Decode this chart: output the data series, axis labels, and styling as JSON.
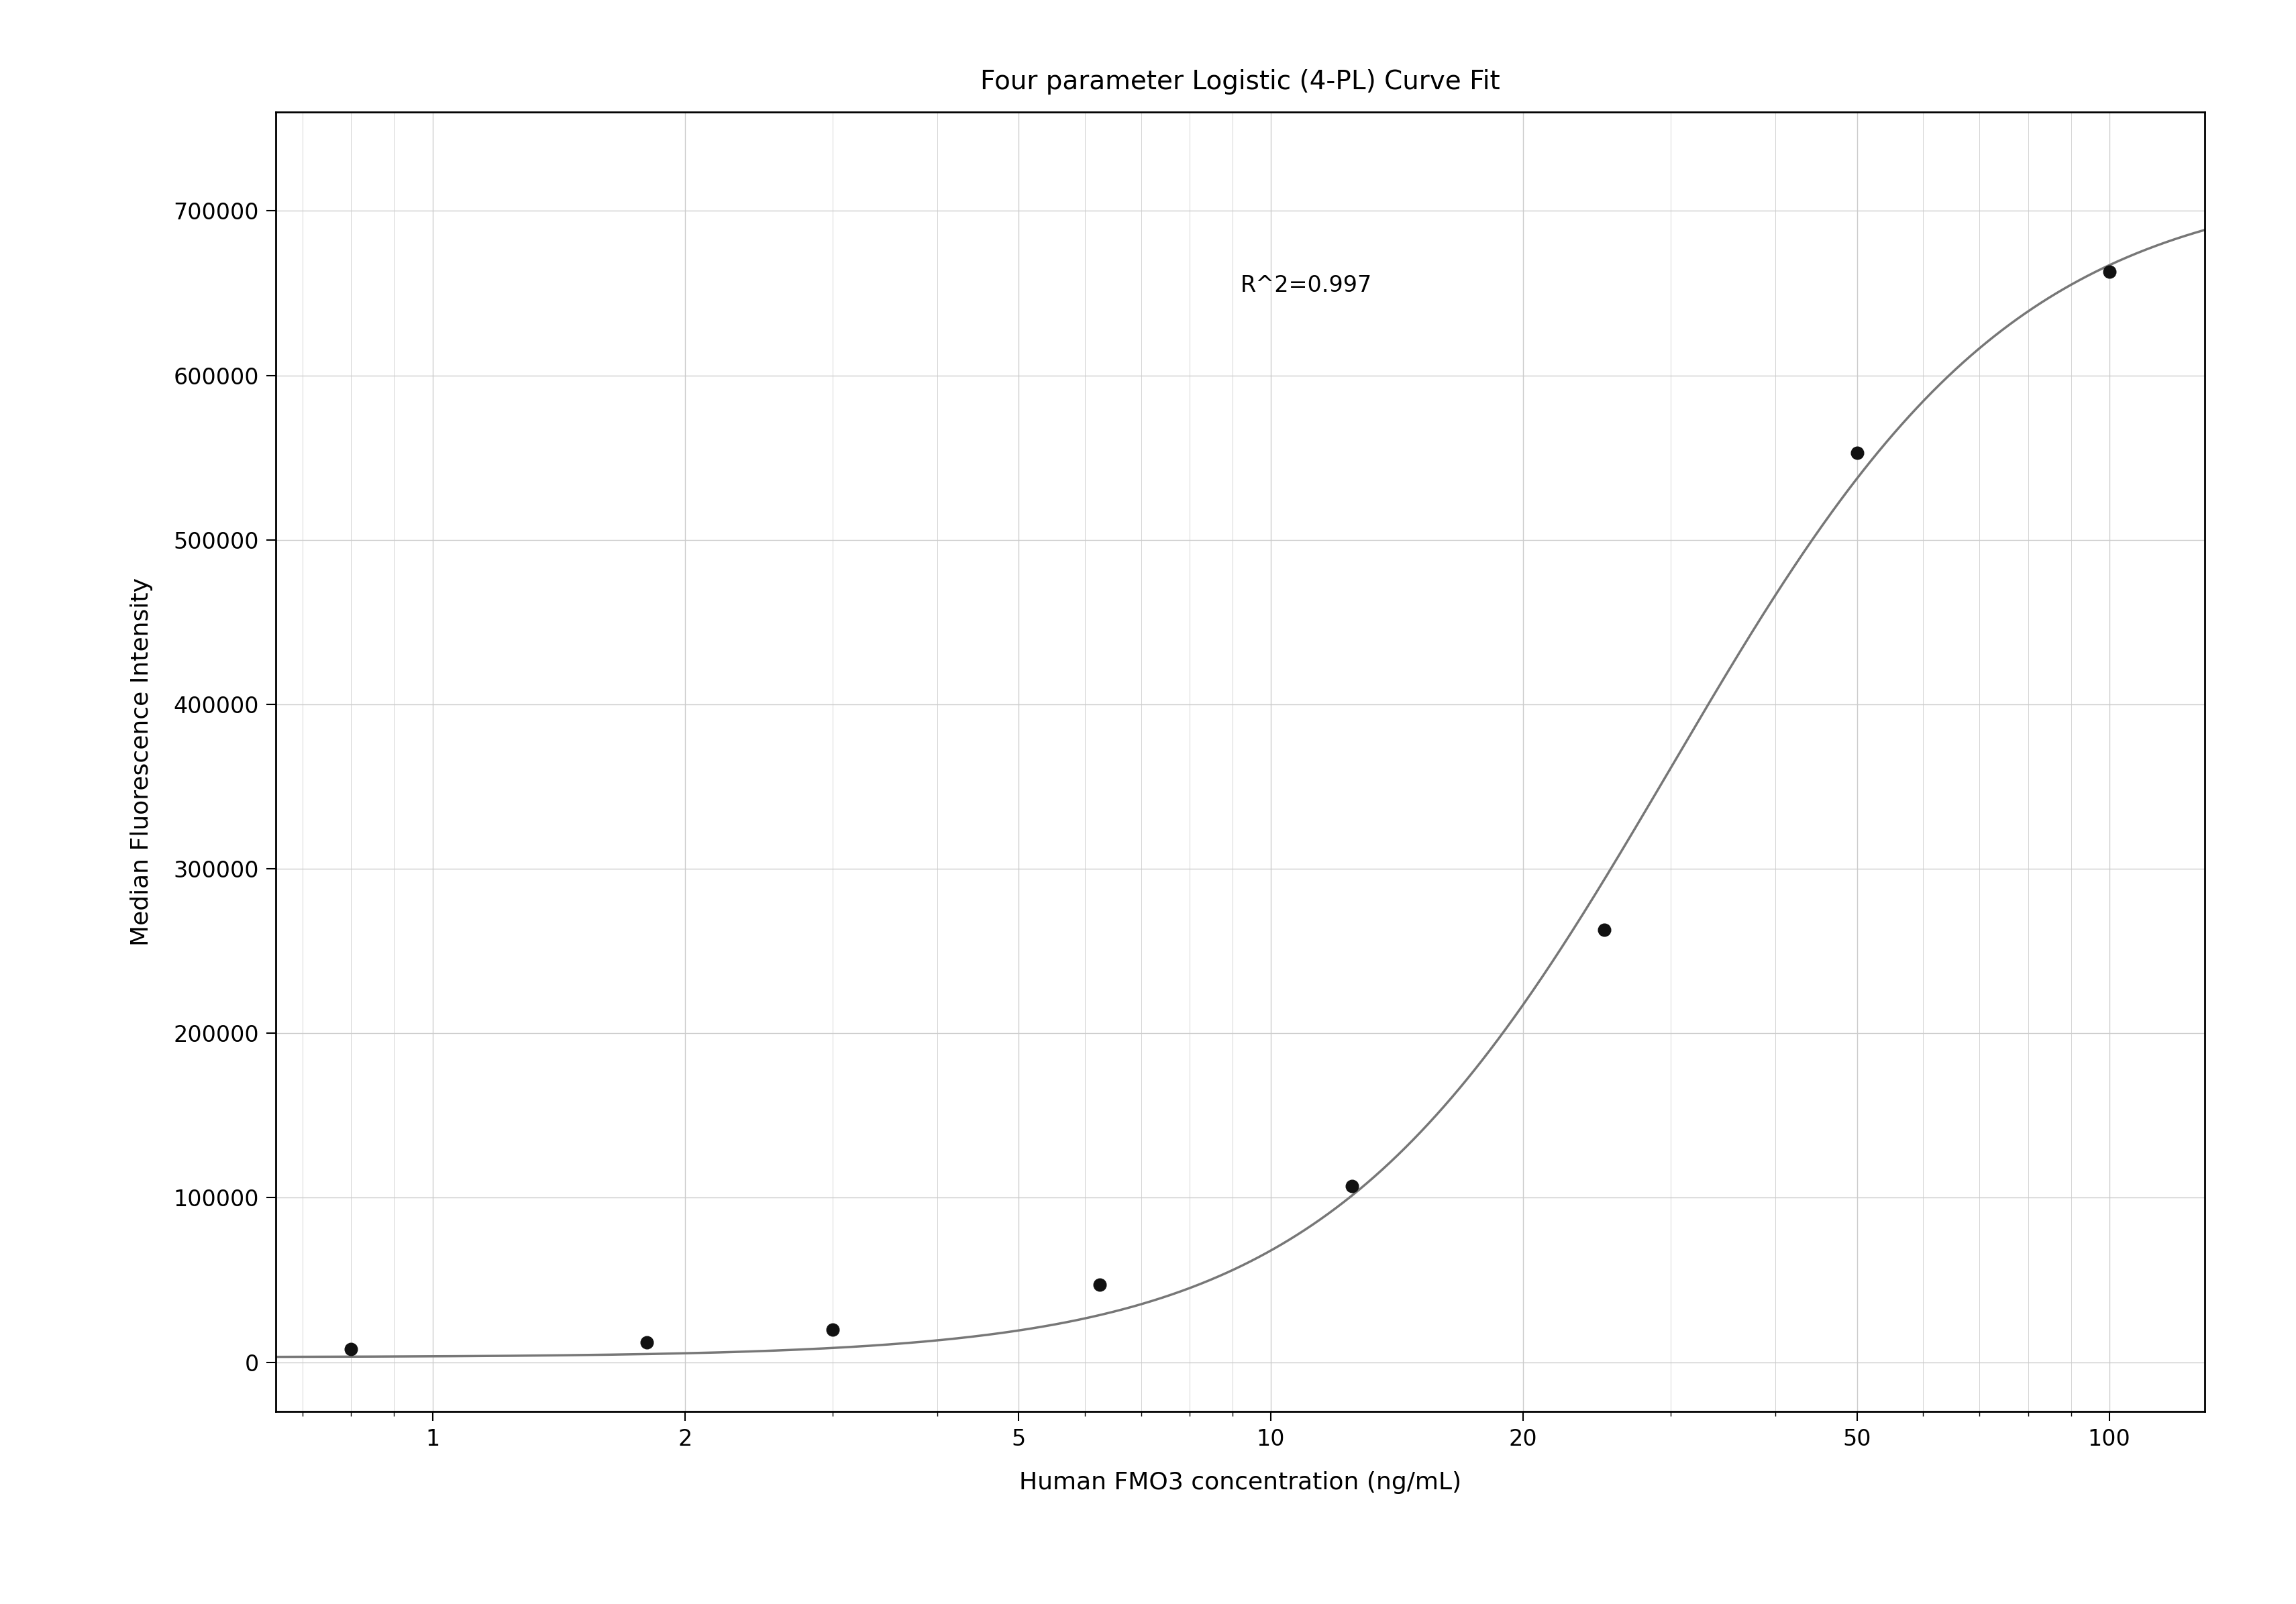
{
  "title": "Four parameter Logistic (4-PL) Curve Fit",
  "xlabel": "Human FMO3 concentration (ng/mL)",
  "ylabel": "Median Fluorescence Intensity",
  "r_squared_text": "R^2=0.997",
  "data_x": [
    0.8,
    1.8,
    3.0,
    6.25,
    12.5,
    25.0,
    50.0,
    100.0
  ],
  "data_y": [
    8000,
    12000,
    20000,
    47000,
    107000,
    263000,
    553000,
    663000
  ],
  "xlim": [
    0.65,
    130
  ],
  "ylim": [
    -30000,
    760000
  ],
  "xticks": [
    1,
    2,
    5,
    10,
    20,
    50,
    100
  ],
  "yticks": [
    0,
    100000,
    200000,
    300000,
    400000,
    500000,
    600000,
    700000
  ],
  "curve_color": "#777777",
  "dot_color": "#111111",
  "dot_size": 180,
  "grid_color": "#cccccc",
  "background_color": "#ffffff",
  "title_fontsize": 28,
  "label_fontsize": 26,
  "tick_fontsize": 24,
  "annotation_fontsize": 24,
  "4pl_A": 3000,
  "4pl_B": 2.1,
  "4pl_C": 30.0,
  "4pl_D": 720000
}
